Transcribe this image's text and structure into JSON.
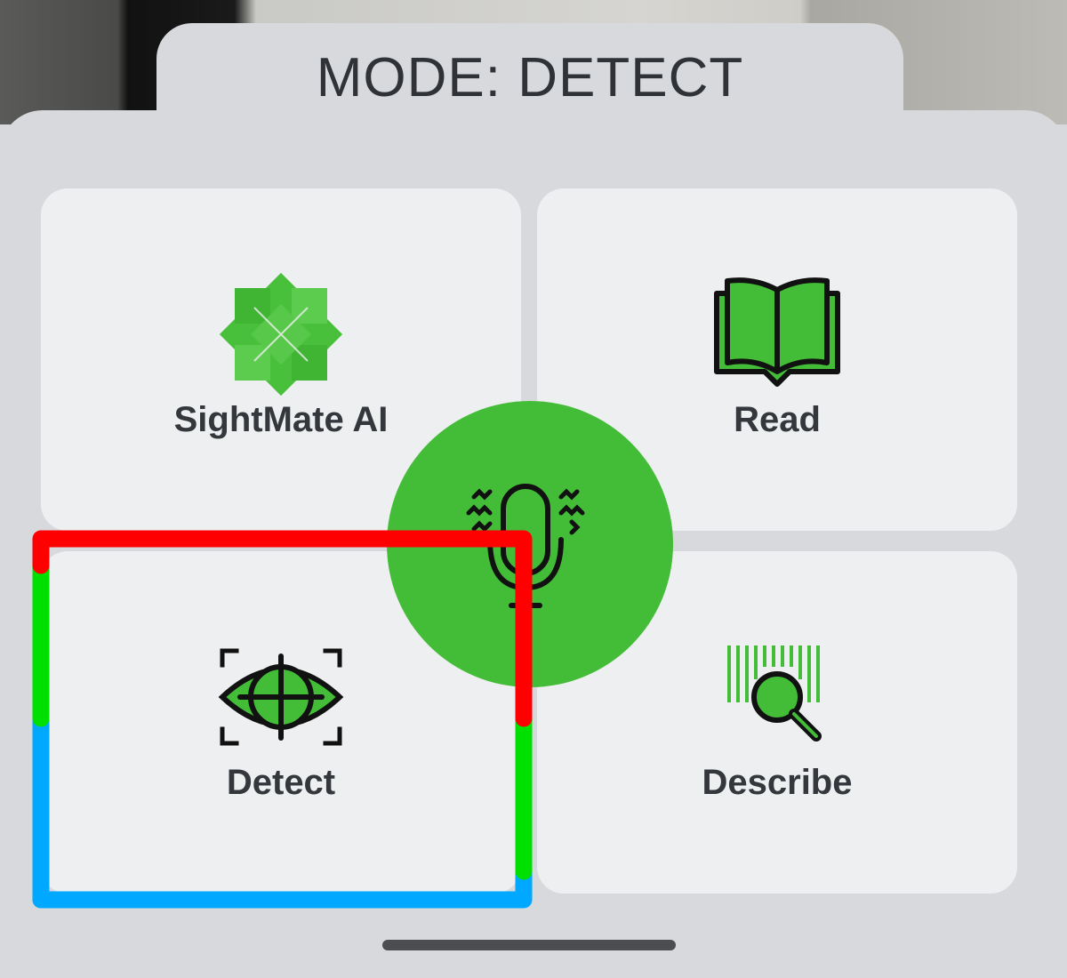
{
  "mode_bar": {
    "title": "MODE: DETECT"
  },
  "cards": {
    "sightmate": {
      "label": "SightMate AI",
      "icon": "sightmate-logo-icon"
    },
    "read": {
      "label": "Read",
      "icon": "open-book-icon"
    },
    "detect": {
      "label": "Detect",
      "icon": "eye-target-icon",
      "selected": true
    },
    "describe": {
      "label": "Describe",
      "icon": "barcode-search-icon"
    }
  },
  "voice": {
    "icon": "microphone-icon"
  },
  "colors": {
    "accent_green": "#43bd37",
    "card_bg": "#eeeff1",
    "panel_bg": "#d7d9dc",
    "focus_red": "#ff0000",
    "focus_green": "#00e000",
    "focus_blue": "#00a8ff",
    "text_dark": "#34383d"
  }
}
